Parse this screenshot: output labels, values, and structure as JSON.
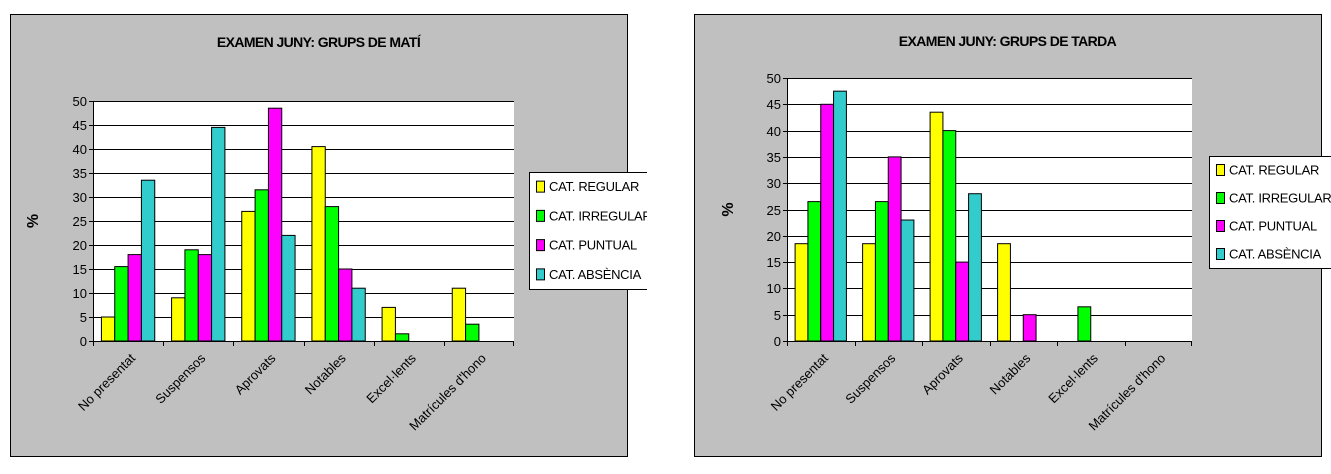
{
  "chart_data": [
    {
      "type": "bar",
      "title": "EXAMEN JUNY: GRUPS DE MATÍ",
      "xlabel": "",
      "ylabel": "%",
      "ylim": [
        0,
        50
      ],
      "yticks": [
        "0",
        "5",
        "10",
        "15",
        "20",
        "25",
        "30",
        "35",
        "40",
        "45",
        "50"
      ],
      "grid": "horizontal",
      "legend_position": "right",
      "categories": [
        "No presentats",
        "Suspensos",
        "Aprovats",
        "Notables",
        "Excel·lents",
        "Matrícules d'honor"
      ],
      "category_labels_visible": [
        "No presentat",
        "Suspensos",
        "Aprovats",
        "Notables",
        "Excel·lents",
        "Matrícules d'hono"
      ],
      "series": [
        {
          "name": "CAT. REGULAR",
          "color": "#ffff00",
          "values": [
            5,
            9,
            27,
            40.5,
            7,
            11
          ]
        },
        {
          "name": "CAT. IRREGULAR",
          "color": "#00ff00",
          "values": [
            15.5,
            19,
            31.5,
            28,
            1.5,
            3.5
          ]
        },
        {
          "name": "CAT. PUNTUAL",
          "color": "#ff00ff",
          "values": [
            18,
            18,
            48.5,
            15,
            0,
            0
          ]
        },
        {
          "name": "CAT. ABSÈNCIA",
          "color": "#33cccc",
          "values": [
            33.5,
            44.5,
            22,
            11,
            0,
            0
          ]
        }
      ]
    },
    {
      "type": "bar",
      "title": "EXAMEN JUNY: GRUPS DE TARDA",
      "xlabel": "",
      "ylabel": "%",
      "ylim": [
        0,
        50
      ],
      "yticks": [
        "0",
        "5",
        "10",
        "15",
        "20",
        "25",
        "30",
        "35",
        "40",
        "45",
        "50"
      ],
      "grid": "horizontal",
      "legend_position": "right",
      "categories": [
        "No presentats",
        "Suspensos",
        "Aprovats",
        "Notables",
        "Excel·lents",
        "Matrícules d'honor"
      ],
      "category_labels_visible": [
        "No presentat",
        "Suspensos",
        "Aprovats",
        "Notables",
        "Excel·lents",
        "Matrícules d'hono"
      ],
      "series": [
        {
          "name": "CAT. REGULAR",
          "color": "#ffff00",
          "values": [
            18.5,
            18.5,
            43.5,
            18.5,
            0,
            0
          ]
        },
        {
          "name": "CAT. IRREGULAR",
          "color": "#00ff00",
          "values": [
            26.5,
            26.5,
            40,
            0,
            6.5,
            0
          ]
        },
        {
          "name": "CAT. PUNTUAL",
          "color": "#ff00ff",
          "values": [
            45,
            35,
            15,
            5,
            0,
            0
          ]
        },
        {
          "name": "CAT. ABSÈNCIA",
          "color": "#33cccc",
          "values": [
            47.5,
            23,
            28,
            0,
            0,
            0
          ]
        }
      ]
    }
  ],
  "colors": {
    "chart_area": "#c0c0c0",
    "plot_area": "#ffffff",
    "border": "#000000"
  }
}
